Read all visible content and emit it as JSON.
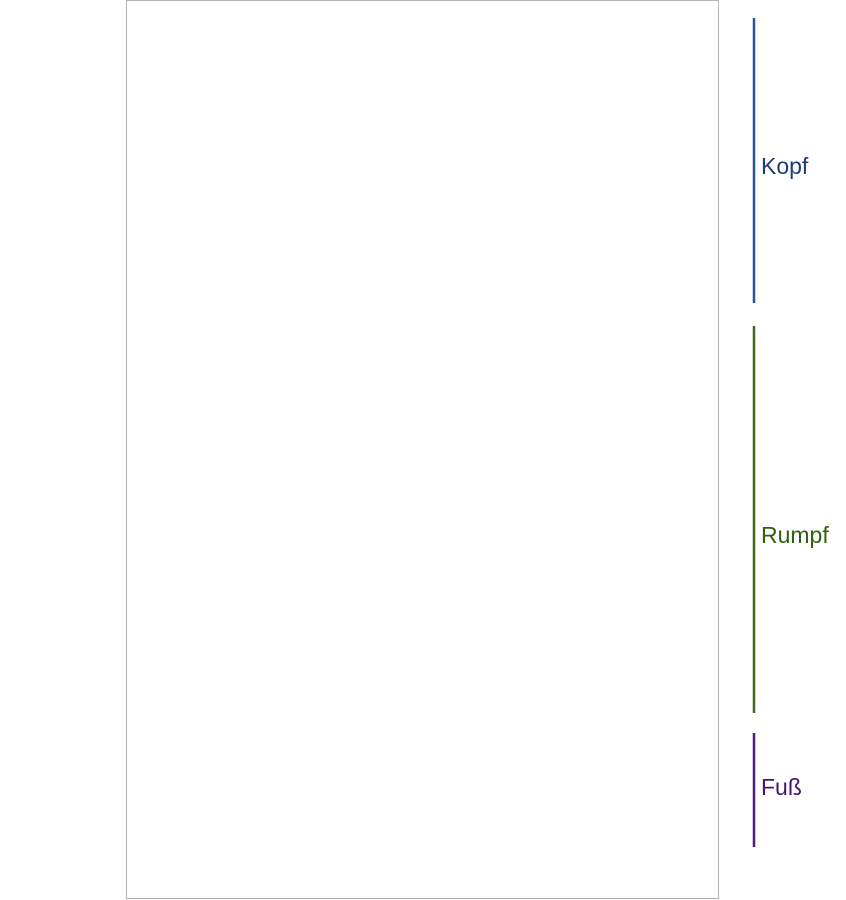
{
  "sections": [
    {
      "label": "Kopf"
    },
    {
      "label": "Rumpf"
    },
    {
      "label": "Fuß"
    }
  ]
}
